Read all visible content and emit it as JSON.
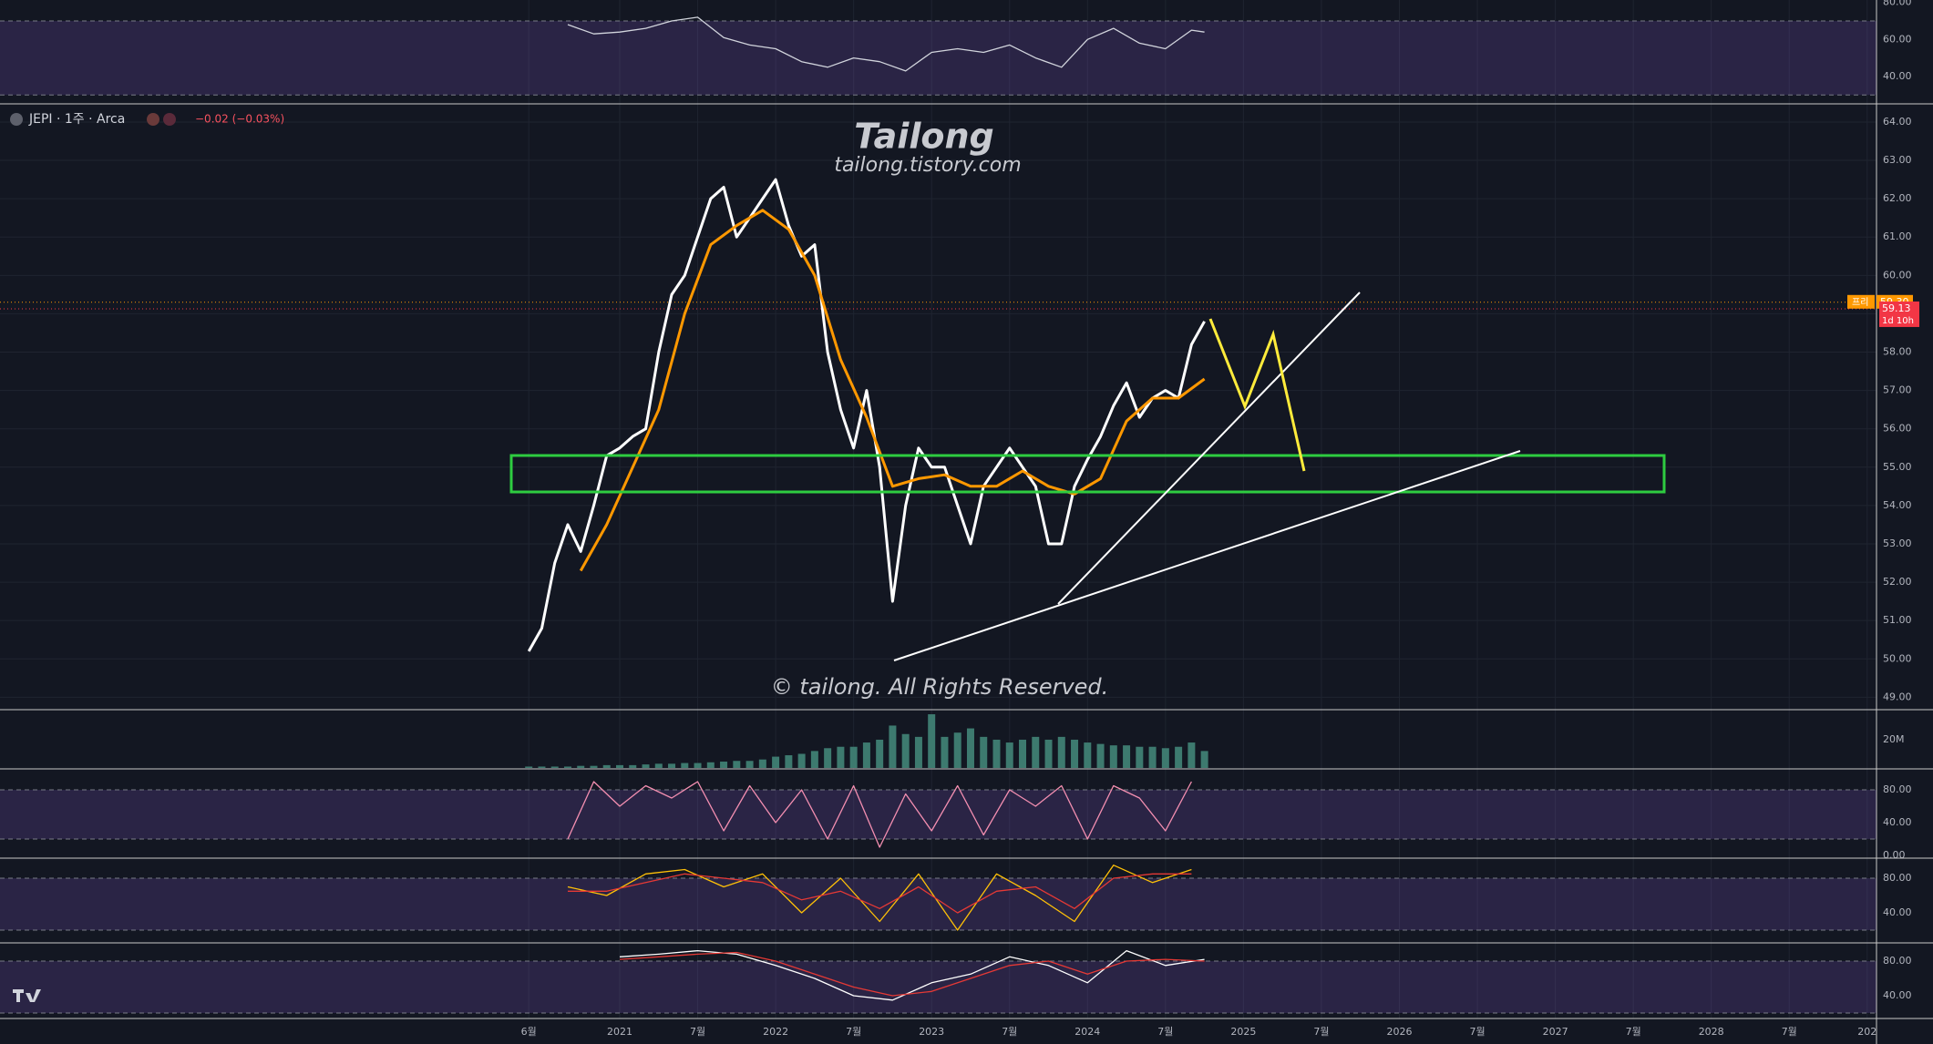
{
  "chart_data": [
    {
      "type": "line",
      "title": "JEPI · 1주 · Arca",
      "change": "−0.02 (−0.03%)",
      "annotations": [
        "Tailong",
        "tailong.tistory.com",
        "© tailong. All Rights Reserved.",
        "프리",
        "1d 10h"
      ],
      "last_price": {
        "value": 59.3,
        "label": "59.30"
      },
      "prev_price": {
        "value": 59.13,
        "label": "59.13"
      },
      "ylim": [
        48.7,
        64.45
      ],
      "yticks": [
        {
          "value": 64,
          "label": "64.00"
        },
        {
          "value": 63,
          "label": "63.00"
        },
        {
          "value": 62,
          "label": "62.00"
        },
        {
          "value": 61,
          "label": "61.00"
        },
        {
          "value": 60,
          "label": "60.00"
        },
        {
          "value": 59,
          "label": "59.00"
        },
        {
          "value": 58,
          "label": "58.00"
        },
        {
          "value": 57,
          "label": "57.00"
        },
        {
          "value": 56,
          "label": "56.00"
        },
        {
          "value": 55,
          "label": "55.00"
        },
        {
          "value": 54,
          "label": "54.00"
        },
        {
          "value": 53,
          "label": "53.00"
        },
        {
          "value": 52,
          "label": "52.00"
        },
        {
          "value": 51,
          "label": "51.00"
        },
        {
          "value": 50,
          "label": "50.00"
        },
        {
          "value": 49,
          "label": "49.00"
        }
      ],
      "xticks": [
        {
          "value": "2020-06",
          "label": "6월"
        },
        {
          "value": "2021-01",
          "label": "2021"
        },
        {
          "value": "2021-07",
          "label": "7월"
        },
        {
          "value": "2022-01",
          "label": "2022"
        },
        {
          "value": "2022-07",
          "label": "7월"
        },
        {
          "value": "2023-01",
          "label": "2023"
        },
        {
          "value": "2023-07",
          "label": "7월"
        },
        {
          "value": "2024-01",
          "label": "2024"
        },
        {
          "value": "2024-07",
          "label": "7월"
        },
        {
          "value": "2025-01",
          "label": "2025"
        },
        {
          "value": "2025-07",
          "label": "7월"
        },
        {
          "value": "2026-01",
          "label": "2026"
        },
        {
          "value": "2026-07",
          "label": "7월"
        },
        {
          "value": "2027-01",
          "label": "2027"
        },
        {
          "value": "2027-07",
          "label": "7월"
        },
        {
          "value": "2028-01",
          "label": "2028"
        },
        {
          "value": "2028-07",
          "label": "7월"
        },
        {
          "value": "2029-01",
          "label": "202"
        }
      ],
      "series": [
        {
          "color": "#ffffff",
          "x": [
            "2020-06",
            "2020-07",
            "2020-08",
            "2020-09",
            "2020-10",
            "2020-11",
            "2020-12",
            "2021-01",
            "2021-02",
            "2021-03",
            "2021-04",
            "2021-05",
            "2021-06",
            "2021-07",
            "2021-08",
            "2021-09",
            "2021-10",
            "2021-11",
            "2021-12",
            "2022-01",
            "2022-02",
            "2022-03",
            "2022-04",
            "2022-05",
            "2022-06",
            "2022-07",
            "2022-08",
            "2022-09",
            "2022-10",
            "2022-11",
            "2022-12",
            "2023-01",
            "2023-02",
            "2023-03",
            "2023-04",
            "2023-05",
            "2023-06",
            "2023-07",
            "2023-08",
            "2023-09",
            "2023-10",
            "2023-11",
            "2023-12",
            "2024-01",
            "2024-02",
            "2024-03",
            "2024-04",
            "2024-05",
            "2024-06",
            "2024-07",
            "2024-08",
            "2024-09",
            "2024-10"
          ],
          "values": [
            50.2,
            50.8,
            52.5,
            53.5,
            52.8,
            54.0,
            55.3,
            55.5,
            55.8,
            56.0,
            58.0,
            59.5,
            60.0,
            61.0,
            62.0,
            62.3,
            61.0,
            61.5,
            62.0,
            62.5,
            61.3,
            60.5,
            60.8,
            58.0,
            56.5,
            55.5,
            57.0,
            55.0,
            51.5,
            54.0,
            55.5,
            55.0,
            55.0,
            54.0,
            53.0,
            54.5,
            55.0,
            55.5,
            55.0,
            54.5,
            53.0,
            53.0,
            54.5,
            55.2,
            55.8,
            56.6,
            57.2,
            56.3,
            56.8,
            57.0,
            56.8,
            58.2,
            58.8
          ]
        },
        {
          "color": "#ff9800",
          "x": [
            "2020-10",
            "2020-12",
            "2021-02",
            "2021-04",
            "2021-06",
            "2021-08",
            "2021-10",
            "2021-12",
            "2022-02",
            "2022-04",
            "2022-06",
            "2022-08",
            "2022-10",
            "2022-12",
            "2023-02",
            "2023-04",
            "2023-06",
            "2023-08",
            "2023-10",
            "2023-12",
            "2024-02",
            "2024-04",
            "2024-06",
            "2024-08",
            "2024-10"
          ],
          "values": [
            52.3,
            53.5,
            55.0,
            56.5,
            59.0,
            60.8,
            61.3,
            61.7,
            61.2,
            60.0,
            57.8,
            56.3,
            54.5,
            54.7,
            54.8,
            54.5,
            54.5,
            54.9,
            54.5,
            54.3,
            54.7,
            56.2,
            56.8,
            56.8,
            57.3
          ]
        }
      ]
    },
    {
      "type": "line",
      "ylim": [
        26.2,
        81.3
      ],
      "band": [
        30,
        70
      ],
      "yticks": [
        {
          "value": 80,
          "label": "80.00"
        },
        {
          "value": 60,
          "label": "60.00"
        },
        {
          "value": 40,
          "label": "40.00"
        }
      ],
      "series": [
        {
          "color": "#d1d4dc",
          "x": [
            "2020-09",
            "2020-11",
            "2021-01",
            "2021-03",
            "2021-05",
            "2021-07",
            "2021-09",
            "2021-11",
            "2022-01",
            "2022-03",
            "2022-05",
            "2022-07",
            "2022-09",
            "2022-11",
            "2023-01",
            "2023-03",
            "2023-05",
            "2023-07",
            "2023-09",
            "2023-11",
            "2024-01",
            "2024-03",
            "2024-05",
            "2024-07",
            "2024-09",
            "2024-10"
          ],
          "values": [
            68,
            63,
            64,
            66,
            70,
            72,
            61,
            57,
            55,
            48,
            45,
            50,
            48,
            43,
            53,
            55,
            53,
            57,
            50,
            45,
            60,
            66,
            58,
            55,
            65,
            64
          ]
        }
      ]
    },
    {
      "type": "bar",
      "ylim": [
        0,
        40600000
      ],
      "color": "#3d7a6f",
      "yticks": [
        {
          "value": 20000000,
          "label": "20M"
        }
      ],
      "x": [
        "2020-06",
        "2020-07",
        "2020-08",
        "2020-09",
        "2020-10",
        "2020-11",
        "2020-12",
        "2021-01",
        "2021-02",
        "2021-03",
        "2021-04",
        "2021-05",
        "2021-06",
        "2021-07",
        "2021-08",
        "2021-09",
        "2021-10",
        "2021-11",
        "2021-12",
        "2022-01",
        "2022-02",
        "2022-03",
        "2022-04",
        "2022-05",
        "2022-06",
        "2022-07",
        "2022-08",
        "2022-09",
        "2022-10",
        "2022-11",
        "2022-12",
        "2023-01",
        "2023-02",
        "2023-03",
        "2023-04",
        "2023-05",
        "2023-06",
        "2023-07",
        "2023-08",
        "2023-09",
        "2023-10",
        "2023-11",
        "2023-12",
        "2024-01",
        "2024-02",
        "2024-03",
        "2024-04",
        "2024-05",
        "2024-06",
        "2024-07",
        "2024-08",
        "2024-09",
        "2024-10"
      ],
      "values": [
        1000000,
        1000000,
        1000000,
        1000000,
        1500000,
        1500000,
        2000000,
        2000000,
        2000000,
        2500000,
        3000000,
        3000000,
        3500000,
        3500000,
        4000000,
        4500000,
        5000000,
        5000000,
        6000000,
        8000000,
        9000000,
        10000000,
        12000000,
        14000000,
        15000000,
        15000000,
        18000000,
        20000000,
        30000000,
        24000000,
        22000000,
        38000000,
        22000000,
        25000000,
        28000000,
        22000000,
        20000000,
        18000000,
        20000000,
        22000000,
        20000000,
        22000000,
        20000000,
        18000000,
        17000000,
        16000000,
        16000000,
        15000000,
        15000000,
        14000000,
        15000000,
        18000000,
        12000000
      ]
    },
    {
      "type": "line",
      "ylim": [
        -1.1,
        104.4
      ],
      "band": [
        20,
        80
      ],
      "yticks": [
        {
          "value": 80,
          "label": "80.00"
        },
        {
          "value": 40,
          "label": "40.00"
        },
        {
          "value": 0,
          "label": "0.00"
        }
      ],
      "series": [
        {
          "color": "#f48fb1",
          "x": [
            "2020-09",
            "2020-11",
            "2021-01",
            "2021-03",
            "2021-05",
            "2021-07",
            "2021-09",
            "2021-11",
            "2022-01",
            "2022-03",
            "2022-05",
            "2022-07",
            "2022-09",
            "2022-11",
            "2023-01",
            "2023-03",
            "2023-05",
            "2023-07",
            "2023-09",
            "2023-11",
            "2024-01",
            "2024-03",
            "2024-05",
            "2024-07",
            "2024-09"
          ],
          "values": [
            20,
            90,
            60,
            85,
            70,
            90,
            30,
            85,
            40,
            80,
            20,
            85,
            10,
            75,
            30,
            85,
            25,
            80,
            60,
            85,
            20,
            85,
            70,
            30,
            90
          ]
        }
      ]
    },
    {
      "type": "line",
      "ylim": [
        7.4,
        102.1
      ],
      "band": [
        20,
        80
      ],
      "yticks": [
        {
          "value": 80,
          "label": "80.00"
        },
        {
          "value": 40,
          "label": "40.00"
        }
      ],
      "series": [
        {
          "color": "#ffc107",
          "x": [
            "2020-09",
            "2020-12",
            "2021-03",
            "2021-06",
            "2021-09",
            "2021-12",
            "2022-03",
            "2022-06",
            "2022-09",
            "2022-12",
            "2023-03",
            "2023-06",
            "2023-09",
            "2023-12",
            "2024-03",
            "2024-06",
            "2024-09"
          ],
          "values": [
            70,
            60,
            85,
            90,
            70,
            85,
            40,
            80,
            30,
            85,
            20,
            85,
            60,
            30,
            95,
            75,
            90
          ]
        },
        {
          "color": "#e53935",
          "x": [
            "2020-09",
            "2020-12",
            "2021-03",
            "2021-06",
            "2021-09",
            "2021-12",
            "2022-03",
            "2022-06",
            "2022-09",
            "2022-12",
            "2023-03",
            "2023-06",
            "2023-09",
            "2023-12",
            "2024-03",
            "2024-06",
            "2024-09"
          ],
          "values": [
            65,
            65,
            75,
            85,
            80,
            75,
            55,
            65,
            45,
            70,
            40,
            65,
            70,
            45,
            80,
            85,
            85
          ]
        }
      ]
    },
    {
      "type": "line",
      "ylim": [
        15.8,
        100
      ],
      "band": [
        20,
        80
      ],
      "yticks": [
        {
          "value": 80,
          "label": "80.00"
        },
        {
          "value": 40,
          "label": "40.00"
        }
      ],
      "series": [
        {
          "color": "#ffffff",
          "x": [
            "2021-01",
            "2021-04",
            "2021-07",
            "2021-10",
            "2022-01",
            "2022-04",
            "2022-07",
            "2022-10",
            "2023-01",
            "2023-04",
            "2023-07",
            "2023-10",
            "2024-01",
            "2024-04",
            "2024-07",
            "2024-10"
          ],
          "values": [
            85,
            88,
            92,
            88,
            75,
            60,
            40,
            35,
            55,
            65,
            85,
            75,
            55,
            92,
            75,
            82
          ]
        },
        {
          "color": "#e53935",
          "x": [
            "2021-01",
            "2021-04",
            "2021-07",
            "2021-10",
            "2022-01",
            "2022-04",
            "2022-07",
            "2022-10",
            "2023-01",
            "2023-04",
            "2023-07",
            "2023-10",
            "2024-01",
            "2024-04",
            "2024-07",
            "2024-10"
          ],
          "values": [
            82,
            85,
            88,
            90,
            80,
            65,
            50,
            40,
            45,
            60,
            75,
            80,
            65,
            80,
            82,
            80
          ]
        }
      ]
    }
  ]
}
